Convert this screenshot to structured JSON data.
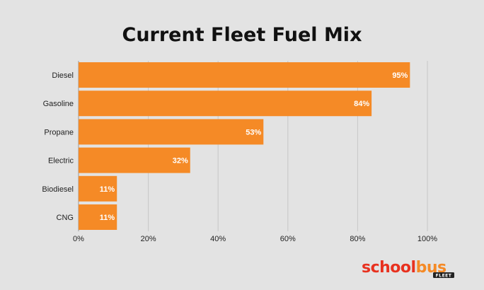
{
  "colors": {
    "background": "#e3e3e3",
    "bar": "#f58a26",
    "logo_school": "#e8311f",
    "logo_bus": "#f58a26",
    "logo_badge": "#222222"
  },
  "chart_data": {
    "type": "bar",
    "orientation": "horizontal",
    "title": "Current Fleet Fuel Mix",
    "categories": [
      "Diesel",
      "Gasoline",
      "Propane",
      "Electric",
      "Biodiesel",
      "CNG"
    ],
    "values": [
      95,
      84,
      53,
      32,
      11,
      11
    ],
    "value_labels": [
      "95%",
      "84%",
      "53%",
      "32%",
      "11%",
      "11%"
    ],
    "xlim": [
      0,
      100
    ],
    "xticks": [
      0,
      20,
      40,
      60,
      80,
      100
    ],
    "xtick_labels": [
      "0%",
      "20%",
      "40%",
      "60%",
      "80%",
      "100%"
    ],
    "grid": true,
    "xlabel": "",
    "ylabel": ""
  },
  "logo": {
    "part1": "school",
    "part2": "bus",
    "sub": "FLEET"
  }
}
